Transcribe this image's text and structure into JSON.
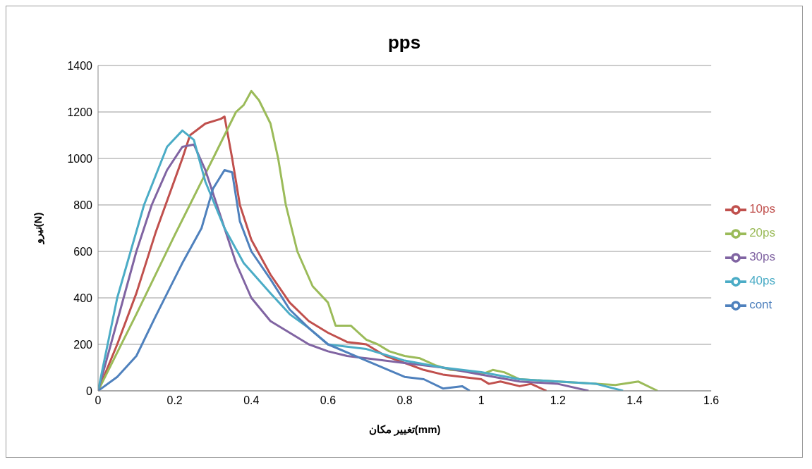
{
  "chart_data": {
    "type": "line",
    "title": "pps",
    "xlabel": "تغییر مکان(mm)",
    "ylabel": "نیرو(N)",
    "xlim": [
      0,
      1.6
    ],
    "xticks": [
      0,
      0.2,
      0.4,
      0.6,
      0.8,
      1,
      1.2,
      1.4,
      1.6
    ],
    "ylim": [
      0,
      1400
    ],
    "yticks": [
      0,
      200,
      400,
      600,
      800,
      1000,
      1200,
      1400
    ],
    "grid": "y",
    "legend": "right",
    "marker": "none",
    "line_style": "solid",
    "series": [
      {
        "name": "10ps",
        "color": "#c0504d",
        "x": [
          0,
          0.05,
          0.1,
          0.15,
          0.22,
          0.24,
          0.28,
          0.32,
          0.33,
          0.35,
          0.37,
          0.4,
          0.45,
          0.5,
          0.55,
          0.6,
          0.65,
          0.7,
          0.75,
          0.8,
          0.85,
          0.9,
          0.95,
          1,
          1.02,
          1.05,
          1.1,
          1.13,
          1.17
        ],
        "values": [
          0,
          200,
          420,
          680,
          1000,
          1100,
          1150,
          1170,
          1180,
          1000,
          800,
          650,
          500,
          380,
          300,
          250,
          210,
          200,
          150,
          120,
          90,
          70,
          60,
          50,
          30,
          40,
          20,
          30,
          0
        ]
      },
      {
        "name": "20ps",
        "color": "#9bbb59",
        "x": [
          0,
          0.1,
          0.2,
          0.3,
          0.36,
          0.38,
          0.4,
          0.42,
          0.45,
          0.47,
          0.49,
          0.52,
          0.56,
          0.6,
          0.62,
          0.66,
          0.7,
          0.73,
          0.76,
          0.8,
          0.84,
          0.88,
          0.92,
          0.97,
          1,
          1.03,
          1.06,
          1.1,
          1.2,
          1.3,
          1.35,
          1.41,
          1.46
        ],
        "values": [
          0,
          330,
          670,
          1000,
          1200,
          1230,
          1290,
          1250,
          1150,
          1000,
          800,
          600,
          450,
          380,
          280,
          280,
          220,
          200,
          170,
          150,
          140,
          110,
          90,
          85,
          70,
          90,
          80,
          50,
          40,
          30,
          25,
          40,
          0
        ]
      },
      {
        "name": "30ps",
        "color": "#8064a2",
        "x": [
          0,
          0.05,
          0.1,
          0.14,
          0.18,
          0.22,
          0.25,
          0.28,
          0.32,
          0.36,
          0.4,
          0.45,
          0.5,
          0.55,
          0.6,
          0.65,
          0.7,
          0.8,
          0.9,
          1,
          1.1,
          1.2,
          1.28
        ],
        "values": [
          0,
          300,
          600,
          800,
          950,
          1050,
          1060,
          950,
          750,
          550,
          400,
          300,
          250,
          200,
          170,
          150,
          140,
          120,
          100,
          70,
          40,
          30,
          0
        ]
      },
      {
        "name": "40ps",
        "color": "#4bacc6",
        "x": [
          0,
          0.05,
          0.12,
          0.18,
          0.22,
          0.25,
          0.28,
          0.33,
          0.38,
          0.45,
          0.5,
          0.55,
          0.6,
          0.7,
          0.8,
          0.9,
          1,
          1.1,
          1.2,
          1.3,
          1.37
        ],
        "values": [
          0,
          400,
          800,
          1050,
          1120,
          1080,
          900,
          700,
          550,
          420,
          330,
          270,
          200,
          180,
          130,
          100,
          80,
          50,
          40,
          30,
          0
        ]
      },
      {
        "name": "cont",
        "color": "#4f81bd",
        "x": [
          0,
          0.05,
          0.1,
          0.15,
          0.22,
          0.27,
          0.3,
          0.33,
          0.35,
          0.37,
          0.4,
          0.45,
          0.5,
          0.55,
          0.6,
          0.7,
          0.8,
          0.85,
          0.9,
          0.95,
          0.97
        ],
        "values": [
          0,
          60,
          150,
          320,
          550,
          700,
          870,
          950,
          940,
          730,
          600,
          480,
          350,
          270,
          200,
          130,
          60,
          50,
          10,
          20,
          0
        ]
      }
    ]
  }
}
